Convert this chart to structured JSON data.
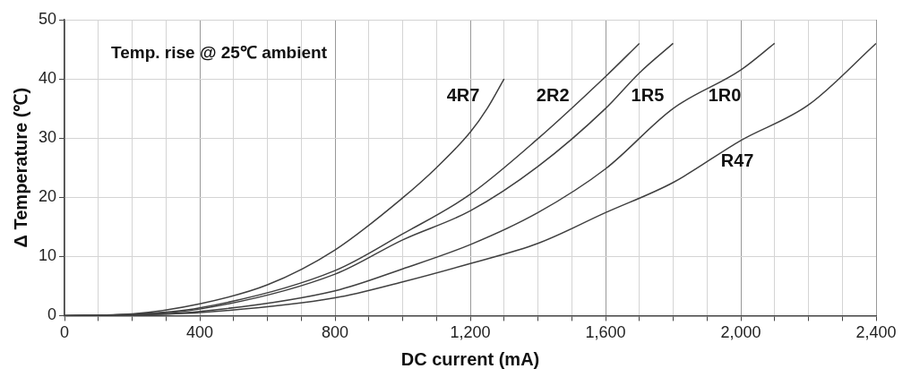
{
  "chart_data": {
    "type": "line",
    "xlabel": "DC current (mA)",
    "ylabel": "Δ Temperature (℃)",
    "annotations": [
      "Temp. rise @ 25℃ ambient"
    ],
    "xlim": [
      0,
      2400
    ],
    "ylim": [
      0,
      50
    ],
    "xticks": [
      0,
      {
        "value": 100,
        "label": null
      },
      {
        "value": 200,
        "label": null
      },
      {
        "value": 300,
        "label": null
      },
      {
        "value": 400,
        "label": "400"
      },
      {
        "value": 500,
        "label": null
      },
      {
        "value": 600,
        "label": null
      },
      {
        "value": 700,
        "label": null
      },
      {
        "value": 800,
        "label": "800"
      },
      {
        "value": 900,
        "label": null
      },
      {
        "value": 1000,
        "label": null
      },
      {
        "value": 1100,
        "label": null
      },
      {
        "value": 1200,
        "label": "1,200"
      },
      {
        "value": 1300,
        "label": null
      },
      {
        "value": 1400,
        "label": null
      },
      {
        "value": 1500,
        "label": null
      },
      {
        "value": 1600,
        "label": "1,600"
      },
      {
        "value": 1700,
        "label": null
      },
      {
        "value": 1800,
        "label": null
      },
      {
        "value": 1900,
        "label": null
      },
      {
        "value": 2000,
        "label": "2,000"
      },
      {
        "value": 2100,
        "label": null
      },
      {
        "value": 2200,
        "label": null
      },
      {
        "value": 2300,
        "label": null
      },
      {
        "value": 2400,
        "label": "2,400"
      }
    ],
    "yticks": [
      0,
      10,
      20,
      30,
      40,
      50
    ],
    "grid": true,
    "legend": false,
    "marker": "none",
    "line_style": "solid",
    "series": [
      {
        "name": "4R7",
        "color": "#404040",
        "x": [
          0,
          200,
          400,
          600,
          800,
          1000,
          1100,
          1200,
          1250,
          1300
        ],
        "values": [
          0,
          0.3,
          2.0,
          5.2,
          11.1,
          19.9,
          25,
          31,
          35,
          40
        ]
      },
      {
        "name": "2R2",
        "color": "#404040",
        "x": [
          0,
          200,
          400,
          800,
          1000,
          1200,
          1400,
          1600,
          1700
        ],
        "values": [
          0,
          0.2,
          1.3,
          7.6,
          13.8,
          20.5,
          29.9,
          40.4,
          46
        ]
      },
      {
        "name": "1R5",
        "color": "#404040",
        "x": [
          0,
          200,
          400,
          800,
          1000,
          1200,
          1400,
          1600,
          1700,
          1800
        ],
        "values": [
          0,
          0.2,
          1.1,
          7.0,
          12.8,
          17.7,
          25.2,
          35,
          41,
          46
        ]
      },
      {
        "name": "1R0",
        "color": "#404040",
        "x": [
          0,
          200,
          400,
          800,
          1000,
          1200,
          1400,
          1600,
          1800,
          2000,
          2100
        ],
        "values": [
          0,
          0.1,
          0.7,
          4.2,
          7.9,
          12,
          17.4,
          24.8,
          35,
          41.5,
          46
        ]
      },
      {
        "name": "R47",
        "color": "#404040",
        "x": [
          0,
          200,
          400,
          800,
          1000,
          1200,
          1400,
          1600,
          1800,
          2000,
          2200,
          2400
        ],
        "values": [
          0,
          0.1,
          0.5,
          3.0,
          5.7,
          8.8,
          12.2,
          17.4,
          22.5,
          29.6,
          35.6,
          46
        ]
      }
    ]
  }
}
